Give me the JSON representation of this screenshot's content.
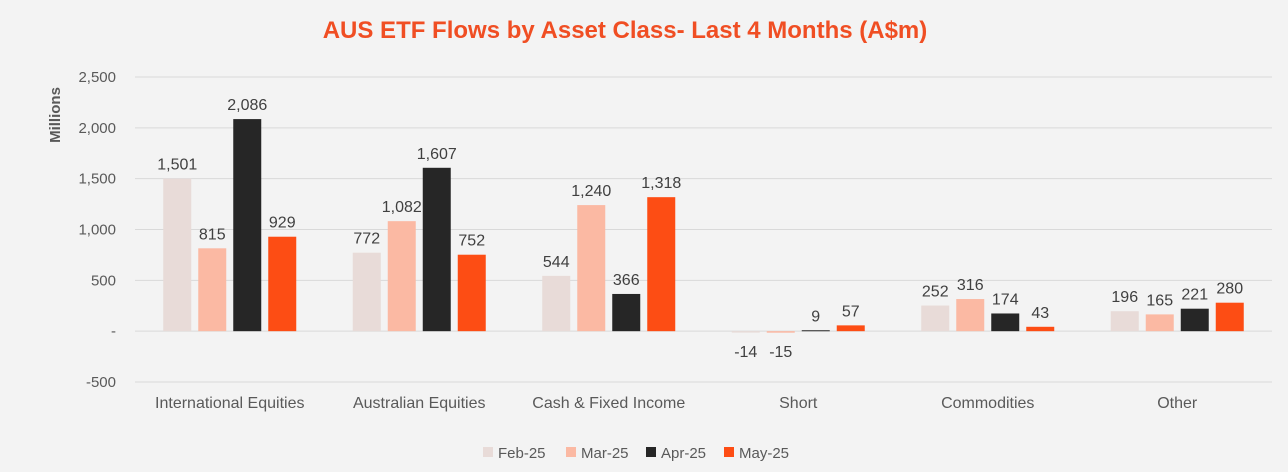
{
  "chart_data": {
    "type": "bar",
    "title": "AUS ETF Flows by Asset Class- Last 4 Months (A$m)",
    "ylabel": "Millions",
    "xlabel": "",
    "ylim": [
      -500,
      2500
    ],
    "yticks": [
      -500,
      0,
      500,
      1000,
      1500,
      2000,
      2500
    ],
    "ytick_labels": [
      "-500",
      "-",
      "500",
      "1,000",
      "1,500",
      "2,000",
      "2,500"
    ],
    "grid": true,
    "legend_position": "bottom",
    "categories": [
      "International Equities",
      "Australian Equities",
      "Cash & Fixed Income",
      "Short",
      "Commodities",
      "Other"
    ],
    "series": [
      {
        "name": "Feb-25",
        "color": "#e8dbd8",
        "values": [
          1501,
          772,
          544,
          -14,
          252,
          196
        ],
        "labels": [
          "1,501",
          "772",
          "544",
          "-14",
          "252",
          "196"
        ]
      },
      {
        "name": "Mar-25",
        "color": "#fbb9a3",
        "values": [
          815,
          1082,
          1240,
          -15,
          316,
          165
        ],
        "labels": [
          "815",
          "1,082",
          "1,240",
          "-15",
          "316",
          "165"
        ]
      },
      {
        "name": "Apr-25",
        "color": "#262626",
        "values": [
          2086,
          1607,
          366,
          9,
          174,
          221
        ],
        "labels": [
          "2,086",
          "1,607",
          "366",
          "9",
          "174",
          "221"
        ]
      },
      {
        "name": "May-25",
        "color": "#fd4d14",
        "values": [
          929,
          752,
          1318,
          57,
          43,
          280
        ],
        "labels": [
          "929",
          "752",
          "1,318",
          "57",
          "43",
          "280"
        ]
      }
    ],
    "colors": {
      "title": "#f04e23",
      "axis": "#595959",
      "grid": "#d9d9d9"
    }
  }
}
